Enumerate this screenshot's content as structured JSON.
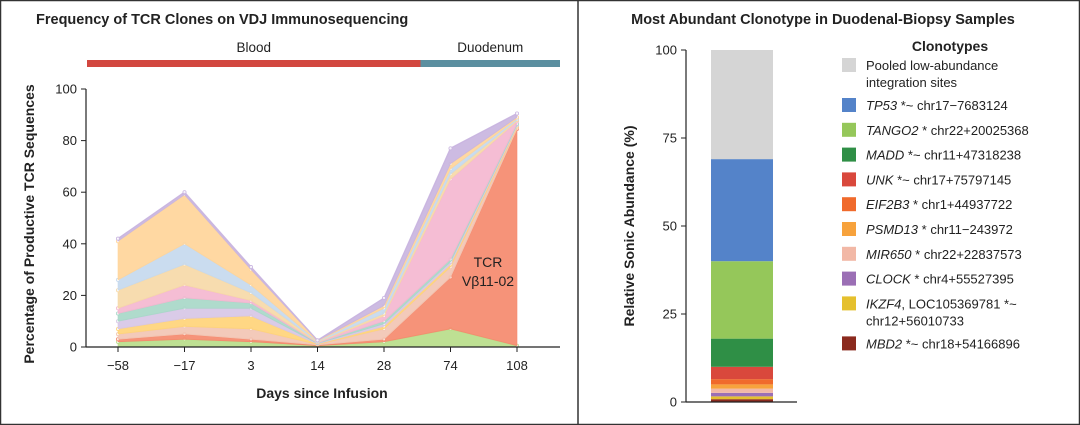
{
  "colors": {
    "frame": "#333333",
    "axis": "#222222",
    "blood_bar": "#d2473f",
    "duodenum_bar": "#5b8fa0",
    "tcr_area": "#f58a6e"
  },
  "chart_data": [
    {
      "type": "area",
      "title": "Frequency of TCR Clones on VDJ Immunosequencing",
      "xlabel": "Days since Infusion",
      "ylabel": "Percentage of Productive TCR Sequences",
      "categories": [
        "−58",
        "−17",
        "3",
        "14",
        "28",
        "74",
        "108"
      ],
      "ylim": [
        0,
        100
      ],
      "yticks": [
        0,
        20,
        40,
        60,
        80,
        100
      ],
      "grid": false,
      "compartments": [
        {
          "label": "Blood",
          "from_category": 0,
          "to_category": 5,
          "color": "#d2473f"
        },
        {
          "label": "Duodenum",
          "from_category": 5,
          "to_category": 6,
          "color": "#5b8fa0"
        }
      ],
      "annotation": {
        "line1": "TCR",
        "line2": "Vβ11-02"
      },
      "series": [
        {
          "color": "#b8dd8a",
          "values": [
            2,
            3,
            2,
            0.5,
            2,
            7,
            0.5
          ]
        },
        {
          "color": "#f58a6e",
          "values": [
            1,
            2,
            1,
            0.3,
            1,
            20,
            84
          ]
        },
        {
          "color": "#f2c6b4",
          "values": [
            2,
            3,
            4,
            0.2,
            4,
            4,
            0.5
          ]
        },
        {
          "color": "#ffd47a",
          "values": [
            2,
            3,
            5,
            0.2,
            1,
            1,
            0.5
          ]
        },
        {
          "color": "#d7c7e6",
          "values": [
            3,
            4,
            3,
            0.2,
            1,
            1,
            0.5
          ]
        },
        {
          "color": "#a8d8c8",
          "values": [
            3,
            4,
            2,
            0.2,
            1,
            1,
            0.5
          ]
        },
        {
          "color": "#f4b7d0",
          "values": [
            2,
            5,
            1,
            0.2,
            2,
            31,
            1
          ]
        },
        {
          "color": "#f6d9a8",
          "values": [
            7,
            8,
            3,
            0.2,
            1,
            2,
            0.5
          ]
        },
        {
          "color": "#c6d9ee",
          "values": [
            4,
            8,
            3,
            0.2,
            2,
            2,
            0.5
          ]
        },
        {
          "color": "#ffd59a",
          "values": [
            15,
            19,
            6,
            0.3,
            1,
            2,
            0.5
          ]
        },
        {
          "color": "#c9b5e0",
          "values": [
            1,
            1,
            1,
            0.1,
            3,
            6,
            1.5
          ]
        }
      ]
    },
    {
      "type": "bar",
      "stacked": true,
      "title": "Most Abundant Clonotype in Duodenal-Biopsy Samples",
      "ylabel": "Relative Sonic Abundance (%)",
      "ylim": [
        0,
        100
      ],
      "yticks": [
        0,
        25,
        50,
        75,
        100
      ],
      "legend_title": "Clonotypes",
      "legend_position": "right",
      "segments": [
        {
          "label": "MBD2",
          "label_style": "italic",
          "suffix": " *~ chr18+54166896",
          "color": "#8b2a1e",
          "value": 0.8
        },
        {
          "label": "IKZF4",
          "label_style": "italic",
          "suffix": ", LOC105369781 *~",
          "suffix2": "chr12+56010733",
          "color": "#e5c02e",
          "value": 0.8
        },
        {
          "label": "CLOCK",
          "label_style": "italic",
          "suffix": " * chr4+55527395",
          "color": "#9b6fb5",
          "value": 1.0
        },
        {
          "label": "MIR650",
          "label_style": "italic",
          "suffix": " * chr22+22837573",
          "color": "#f2b8a6",
          "value": 1.2
        },
        {
          "label": "PSMD13",
          "label_style": "italic",
          "suffix": " * chr11−243972",
          "color": "#f7a23c",
          "value": 1.2
        },
        {
          "label": "EIF2B3",
          "label_style": "italic",
          "suffix": " * chr1+44937722",
          "color": "#f06a2c",
          "value": 1.5
        },
        {
          "label": "UNK",
          "label_style": "italic",
          "suffix": " *~ chr17+75797145",
          "color": "#d9483c",
          "value": 3.5
        },
        {
          "label": "MADD",
          "label_style": "italic",
          "suffix": " *~ chr11+47318238",
          "color": "#2f8f46",
          "value": 8.0
        },
        {
          "label": "TANGO2",
          "label_style": "italic",
          "suffix": " * chr22+20025368",
          "color": "#95c75a",
          "value": 22.0
        },
        {
          "label": "TP53",
          "label_style": "italic",
          "suffix": " *~ chr17−7683124",
          "color": "#5483c9",
          "value": 29.0
        },
        {
          "label": "Pooled low-abundance",
          "label_style": "normal",
          "suffix": "",
          "suffix2": "integration sites",
          "color": "#d5d5d5",
          "value": 31.0
        }
      ]
    }
  ]
}
